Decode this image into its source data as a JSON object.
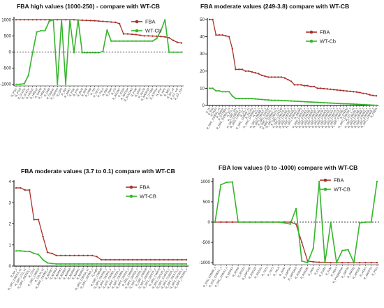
{
  "colors": {
    "fba": "#a8322a",
    "wt": "#35b52b",
    "axis": "#000000"
  },
  "chart_data": [
    {
      "type": "line",
      "title": "FBA high values (1000-250) - compare with WT-CB",
      "ylim": [
        -1050,
        1050
      ],
      "yticks": [
        -1000,
        -500,
        0,
        500,
        1000
      ],
      "legend_position": "top-right",
      "x_labels": [
        "R_PGI1",
        "R_PGI3",
        "R_GLUDy",
        "R_GLUDx",
        "R_HEDu1",
        "R_HEDu2",
        "R_GAPD",
        "R_HEDu3",
        "R_GND",
        "R_CARA1",
        "R_G6PDH",
        "R_GPS",
        "R_RPI",
        "R_ADK1",
        "R_PGK",
        "R_PYK",
        "R_ENO",
        "R_RPE",
        "R_PGM",
        "R_TPI",
        "R_TKT1",
        "R_TALA",
        "R_FBA",
        "R_PDH",
        "R_CS",
        "R_ACONT",
        "R_ICDH",
        "R_AKGDH",
        "R_SUCOAS",
        "R_FUM",
        "R_MDH",
        "R_SUCD",
        "R_NADH16",
        "R_CYTBD",
        "R_ATPS4r",
        "R_PFK",
        "R_PPC",
        "R_ME1",
        "R_EX_o2",
        "R_EX_co2",
        "R_EX_h2o"
      ],
      "series": [
        {
          "name": "FBA",
          "values": [
            1000,
            1000,
            1000,
            1000,
            1000,
            1000,
            1000,
            1000,
            1000,
            1000,
            1000,
            1000,
            1000,
            1000,
            1000,
            990,
            985,
            980,
            975,
            970,
            960,
            950,
            940,
            930,
            920,
            880,
            560,
            560,
            550,
            540,
            520,
            500,
            500,
            495,
            490,
            480,
            470,
            440,
            360,
            300,
            280
          ]
        },
        {
          "name": "WT-Cb",
          "values": [
            -1000,
            -1000,
            -980,
            -720,
            -20,
            620,
            660,
            660,
            950,
            1000,
            -1000,
            1000,
            -1000,
            1000,
            -20,
            1000,
            -20,
            -20,
            -20,
            -20,
            -20,
            20,
            680,
            340,
            340,
            340,
            340,
            340,
            340,
            340,
            340,
            340,
            340,
            340,
            420,
            660,
            1000,
            -5,
            -5,
            -5,
            -5
          ]
        }
      ]
    },
    {
      "type": "line",
      "title": "FBA moderate values (249-3.8)  compare with WT-CB",
      "ylim": [
        0,
        50
      ],
      "yticks": [
        0,
        10,
        20,
        30,
        40,
        50
      ],
      "legend_position": "top-right",
      "x_labels": [
        "R_PI",
        "R_PGI",
        "R_PGI3",
        "R_SRC_C00031_c1",
        "R_Bassic",
        "R_CYTBD1",
        "R_SRC_C00001_c1",
        "R_PG_c",
        "R_SRC_c01",
        "R_SRC_C03022_a",
        "R_SRC_C00041_c",
        "R_GL_c",
        "R_SRC_C00048_c1",
        "R_GLUS1",
        "R_SRC_C05560_c",
        "R_CG_c",
        "R_SRC_C00089_c",
        "R_SRC_C00047_c",
        "R_SRC_C00155",
        "R_SRC_C00134_a",
        "R_SRC_C00062_c1",
        "R_SRC_C00073_c",
        "R_SRC_C00148",
        "R_SRC_C00079_c",
        "R_SRC_C00082_c",
        "R_SRC_C00135_a",
        "R_SRC_C00183_c",
        "R_SRC_C00407_c",
        "R_PRPPS",
        "R_SRC_C00123_c",
        "R_SRC_C00064_c",
        "R_SRC_C00025_c",
        "R_SRC_C00065_c",
        "R_SRC_C00097_c",
        "R_SRC_C00049_c",
        "R_SRC_C00078_c",
        "R_SRC_C00063_c",
        "R_SRC_C00055_c",
        "R_SRC_C00044_c",
        "R_SRC_C00075_c",
        "R_SRC_C00015_c",
        "R_SRC_C00020_c",
        "R_CARA2",
        "R_SRC_C00039_c",
        "R_CO_1_c1",
        "R_SRC_C00239_c",
        "R_SRC_C00286_c",
        "R_SRC_C00360_c",
        "R_SRC_C00362_c",
        "R_SRC_C00458_c",
        "R_SRC_C00459_c",
        "R_DADK"
      ],
      "series": [
        {
          "name": "FBA",
          "values": [
            50,
            50,
            41,
            41,
            41,
            40.5,
            40,
            33,
            21,
            21,
            21,
            20,
            20,
            19.5,
            19,
            18.5,
            17.5,
            17,
            16.5,
            16.5,
            16.5,
            16.5,
            16.5,
            16,
            15,
            14,
            12,
            12,
            12,
            11.5,
            11.5,
            11,
            11,
            10,
            10,
            9.8,
            9.6,
            9.4,
            9.2,
            9,
            8.8,
            8.6,
            8.4,
            8.2,
            8,
            7.8,
            7.5,
            7,
            6.8,
            6.2,
            5.8,
            5.6
          ]
        },
        {
          "name": "WT-Cb",
          "values": [
            10,
            10,
            8.5,
            8.5,
            8,
            8,
            8,
            5.5,
            4,
            4,
            4,
            4,
            4,
            4,
            3.8,
            3.6,
            3.5,
            3.3,
            3.2,
            3,
            3,
            3,
            2.9,
            2.8,
            2.7,
            2.6,
            2.5,
            2.4,
            2.3,
            2.2,
            2.1,
            2,
            1.9,
            1.8,
            1.7,
            1.6,
            1.5,
            1.4,
            1.3,
            1.2,
            1.1,
            1,
            1,
            0.9,
            0.8,
            0.7,
            0.6,
            0.5,
            0.4,
            0.3,
            0.2,
            0.1
          ]
        }
      ]
    },
    {
      "type": "line",
      "title": "FBA moderate values (3.7 to 0.1) compare with WT-CB",
      "ylim": [
        0,
        4
      ],
      "yticks": [
        0,
        1,
        2,
        3,
        4
      ],
      "legend_position": "top-right",
      "x_labels": [
        "R_Ne_1",
        "R_SRC_C00015_c1",
        "R_SRC_C11_c1",
        "R_SRC_C00023_c",
        "R_CSc1",
        "R_SRC_C00024",
        "R_OD_N_c1",
        "R_SRC_C00002_c",
        "R_NDPK7",
        "R_NDPK4",
        "R_NDPK2",
        "R_NDPK5",
        "R_NDPK8",
        "R_NDPK6",
        "R_NDPK1",
        "R_NDPK3",
        "R_SRC_C00034_c1",
        "R_SRC_C00001_c",
        "R_mglb",
        "R_SRC_C00048",
        "R_SRC_C00036_c",
        "R_SRC_C00041_c",
        "R_ESC_C00001_c",
        "R_SRC_C00010_c",
        "R_SRC_C00009_c",
        "R_SRC_C00015_c",
        "R_SRC_C00020",
        "R_SRC_C00026_c",
        "R_SRC_C00034_c",
        "R_SRC_C00038",
        "R_SRC_C00050_c",
        "R_SRC_C00070_c",
        "R_SRC_C00076",
        "R_SRC_C00120_c",
        "R_SRC_C14818_c",
        "R_SRC_C14819_c",
        "R_SRC_C00175_c",
        "R_SRC_C00205_c",
        "R_SRC_C00305_c"
      ],
      "series": [
        {
          "name": "FBA",
          "values": [
            3.7,
            3.7,
            3.6,
            3.6,
            2.2,
            2.2,
            1.4,
            0.65,
            0.6,
            0.5,
            0.5,
            0.5,
            0.5,
            0.5,
            0.5,
            0.5,
            0.5,
            0.5,
            0.45,
            0.3,
            0.3,
            0.3,
            0.3,
            0.3,
            0.3,
            0.3,
            0.3,
            0.3,
            0.3,
            0.3,
            0.3,
            0.3,
            0.3,
            0.3,
            0.3,
            0.3,
            0.3,
            0.3,
            0.3
          ]
        },
        {
          "name": "WT-CB",
          "values": [
            0.72,
            0.72,
            0.7,
            0.7,
            0.6,
            0.55,
            0.3,
            0.15,
            0.12,
            0.1,
            0.1,
            0.1,
            0.1,
            0.1,
            0.1,
            0.1,
            0.1,
            0.1,
            0.1,
            0.1,
            0.1,
            0.1,
            0.1,
            0.1,
            0.1,
            0.1,
            0.1,
            0.1,
            0.1,
            0.1,
            0.1,
            0.1,
            0.1,
            0.1,
            0.1,
            0.1,
            0.1,
            0.1,
            0.1
          ]
        }
      ]
    },
    {
      "type": "line",
      "title": "FBA low values (0 to -1000) compare with WT-CB",
      "ylim": [
        -1050,
        1050
      ],
      "yticks": [
        -1000,
        -500,
        0,
        500,
        1000
      ],
      "legend_position": "top-right",
      "x_labels": [
        "R_ESC_C00080_c",
        "R_ESC_C00001_c",
        "R_SRC_C00011_c",
        "R_NDPK3",
        "R_ASAD",
        "R_RS021",
        "R_UDPG4E",
        "R_RS0110",
        "R_RS0111",
        "R_TKT2",
        "R_TKT1",
        "R_TALA",
        "R_ACKr",
        "R_GAPDH",
        "R_G6PDH2r",
        "R_RS0209",
        "R_RS0290",
        "R_MDH",
        "R_CK1",
        "R_FUM1",
        "R_FUM",
        "R_HEX1",
        "R_PYAMSPSH",
        "R_G6PD1",
        "R_G6PD2",
        "R_ARGDC",
        "R_ADK1",
        "R_AASPS1",
        "R_PGI1"
      ],
      "series": [
        {
          "name": "FBA",
          "values": [
            0,
            0,
            0,
            0,
            0,
            0,
            0,
            0,
            0,
            0,
            0,
            0,
            0,
            0,
            -50,
            -500,
            -960,
            -980,
            -990,
            -990,
            -1000,
            -1000,
            -1000,
            -1000,
            -1000,
            -1000,
            -1000,
            -1000,
            -1000
          ]
        },
        {
          "name": "WT-CB",
          "values": [
            0,
            920,
            980,
            990,
            0,
            0,
            0,
            0,
            0,
            0,
            0,
            0,
            -20,
            -50,
            330,
            -960,
            -1000,
            -640,
            1000,
            -1000,
            -20,
            -1000,
            -700,
            -680,
            -1000,
            -20,
            0,
            0,
            1000
          ]
        }
      ]
    }
  ]
}
